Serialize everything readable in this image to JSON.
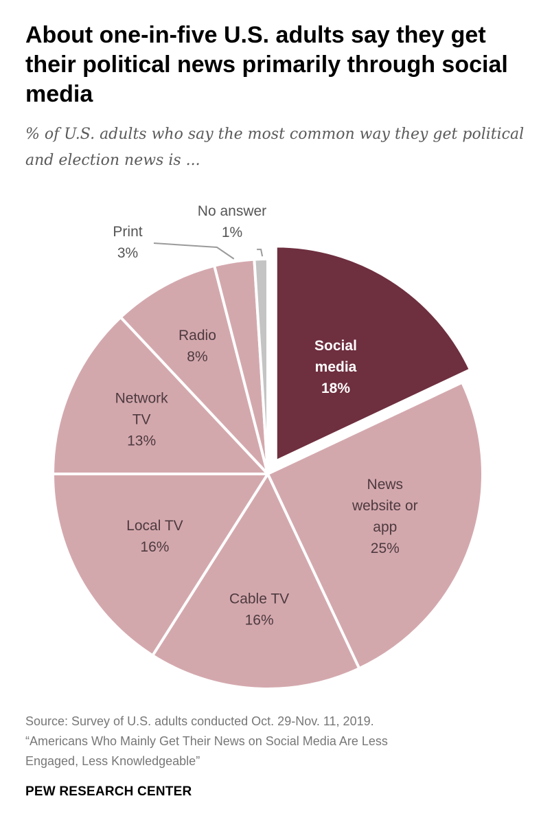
{
  "header": {
    "title": "About one-in-five U.S. adults say they get their political news primarily through social media",
    "subtitle": "% of U.S. adults who say the most common way they get political and election news is ..."
  },
  "colors": {
    "highlight": "#6e2f3f",
    "slice": "#d3a8ad",
    "no_answer": "#c4c4c4",
    "separator": "#ffffff"
  },
  "chart_data": {
    "type": "pie",
    "title": "About one-in-five U.S. adults say they get their political news primarily through social media",
    "subtitle": "% of U.S. adults who say the most common way they get political and election news is ...",
    "unit": "%",
    "slices": [
      {
        "name": "Social media",
        "label_lines": [
          "Social",
          "media"
        ],
        "value": 18,
        "value_label": "18%",
        "highlight": true
      },
      {
        "name": "News website or app",
        "label_lines": [
          "News",
          "website or",
          "app"
        ],
        "value": 25,
        "value_label": "25%"
      },
      {
        "name": "Cable TV",
        "label_lines": [
          "Cable TV"
        ],
        "value": 16,
        "value_label": "16%"
      },
      {
        "name": "Local TV",
        "label_lines": [
          "Local TV"
        ],
        "value": 16,
        "value_label": "16%"
      },
      {
        "name": "Network TV",
        "label_lines": [
          "Network",
          "TV"
        ],
        "value": 13,
        "value_label": "13%"
      },
      {
        "name": "Radio",
        "label_lines": [
          "Radio"
        ],
        "value": 8,
        "value_label": "8%"
      },
      {
        "name": "Print",
        "label_lines": [
          "Print"
        ],
        "value": 3,
        "value_label": "3%",
        "callout": true
      },
      {
        "name": "No answer",
        "label_lines": [
          "No answer"
        ],
        "value": 1,
        "value_label": "1%",
        "callout": true,
        "muted": true
      }
    ]
  },
  "footer": {
    "source_lines": [
      "Source: Survey of U.S. adults conducted Oct. 29-Nov. 11, 2019.",
      "“Americans Who Mainly Get Their News on Social Media Are Less",
      "Engaged, Less Knowledgeable”"
    ],
    "credit": "PEW RESEARCH CENTER"
  }
}
